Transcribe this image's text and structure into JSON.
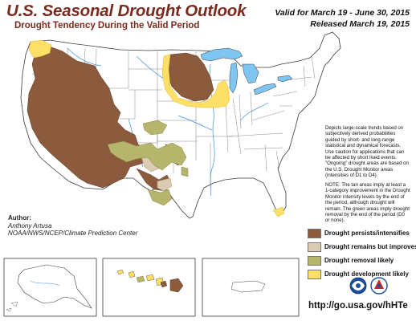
{
  "header": {
    "title": "U.S. Seasonal Drought Outlook",
    "subtitle": "Drought Tendency During the Valid Period",
    "valid": "Valid for March 19 - June 30, 2015",
    "released": "Released March 19, 2015"
  },
  "description": "Depicts large-scale trends based on subjectively derived probabilities guided by short- and long-range statistical and dynamical forecasts. Use caution for applications that can be affected by short lived events. \"Ongoing\" drought areas are based on the U.S. Drought Monitor areas (intensities of D1 to D4).",
  "note": "NOTE: The tan areas imply at least a 1-category improvement in the Drought Monitor intensity levels by the end of the period, although drought will remain. The green areas imply drought removal by the end of the period (D0 or none).",
  "author": {
    "label": "Author:",
    "name": "Anthony Artusa",
    "org": "NOAA/NWS/NCEP/Climate Prediction Center"
  },
  "legend": [
    {
      "label": "Drought persists/intensifies",
      "color": "#8c5a3c"
    },
    {
      "label": "Drought remains but improves",
      "color": "#dccbb3"
    },
    {
      "label": "Drought removal likely",
      "color": "#b5b56c"
    },
    {
      "label": "Drought development likely",
      "color": "#ffe066"
    }
  ],
  "url": "http://go.usa.gov/hHTe",
  "colors": {
    "persists": "#8c5a3c",
    "improves": "#dccbb3",
    "removal": "#b5b56c",
    "development": "#ffe066",
    "water": "#7fc5f2",
    "title": "#7b2a1e"
  },
  "icons": {
    "noaa_logo": "noaa-logo-icon",
    "nws_logo": "nws-logo-icon"
  }
}
